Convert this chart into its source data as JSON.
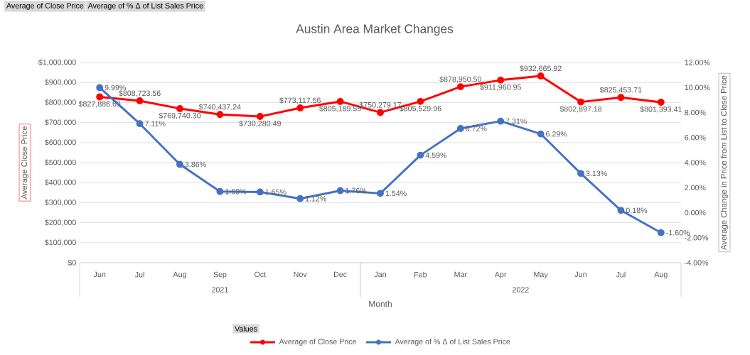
{
  "chart_data": {
    "type": "line",
    "title": "Austin Area Market Changes",
    "xlabel": "Month",
    "ylabel": "Average Close Price",
    "y2label": "Average Change in Price from List to Close Price",
    "legend_title": "Values",
    "annotations": [
      "Average of Close Price",
      "Average of % Δ of List Sales Price",
      "2021",
      "2022"
    ],
    "categories": [
      "Jun",
      "Jul",
      "Aug",
      "Sep",
      "Oct",
      "Nov",
      "Dec",
      "Jan",
      "Feb",
      "Mar",
      "Apr",
      "May",
      "Jun",
      "Jul",
      "Aug"
    ],
    "series": [
      {
        "name": "Average of Close Price",
        "color": "#ff0000",
        "values": [
          827886.69,
          808723.56,
          769740.3,
          740437.24,
          730280.49,
          773117.56,
          805189.55,
          750279.17,
          805529.96,
          878950.5,
          911960.95,
          932665.92,
          802897.18,
          825453.71,
          801393.41
        ],
        "value_labels": [
          "$827,886.69",
          "$808,723.56",
          "$769,740.30",
          "$740,437.24",
          "$730,280.49",
          "$773,117.56",
          "$805,189.55",
          "$750,279.17",
          "$805,529.96",
          "$878,950.50",
          "$911,960.95",
          "$932,665.92",
          "$802,897.18",
          "$825,453.71",
          "$801,393.41"
        ]
      },
      {
        "name": "Average of % Δ of List Sales Price",
        "color": "#4472c4",
        "axis": "y2",
        "values": [
          9.99,
          7.11,
          3.86,
          1.69,
          1.65,
          1.12,
          1.76,
          1.54,
          4.59,
          6.72,
          7.31,
          6.29,
          3.13,
          0.18,
          -1.6
        ],
        "value_labels": [
          "9.99%",
          "7.11%",
          "3.86%",
          "1.69%",
          "1.65%",
          "1.12%",
          "1.76%",
          "1.54%",
          "4.59%",
          "6.72%",
          "7.31%",
          "6.29%",
          "3.13%",
          "0.18%",
          "-1.60%"
        ]
      }
    ],
    "ylim": [
      0,
      1000000
    ],
    "yticks": [
      {
        "value": 0,
        "label": "$0"
      },
      {
        "value": 100000,
        "label": "$100,000"
      },
      {
        "value": 200000,
        "label": "$200,000"
      },
      {
        "value": 300000,
        "label": "$300,000"
      },
      {
        "value": 400000,
        "label": "$400,000"
      },
      {
        "value": 500000,
        "label": "$500,000"
      },
      {
        "value": 600000,
        "label": "$600,000"
      },
      {
        "value": 700000,
        "label": "$700,000"
      },
      {
        "value": 800000,
        "label": "$800,000"
      },
      {
        "value": 900000,
        "label": "$900,000"
      },
      {
        "value": 1000000,
        "label": "$1,000,000"
      }
    ],
    "y2lim": [
      -4,
      12
    ],
    "y2ticks": [
      {
        "value": -4,
        "label": "-4.00%"
      },
      {
        "value": -2,
        "label": "-2.00%"
      },
      {
        "value": 0,
        "label": "0.00%"
      },
      {
        "value": 2,
        "label": "2.00%"
      },
      {
        "value": 4,
        "label": "4.00%"
      },
      {
        "value": 6,
        "label": "6.00%"
      },
      {
        "value": 8,
        "label": "8.00%"
      },
      {
        "value": 10,
        "label": "10.00%"
      },
      {
        "value": 12,
        "label": "12.00%"
      }
    ],
    "grid": "y",
    "legend": "bottom",
    "marker": "circle",
    "line_style": "solid"
  }
}
